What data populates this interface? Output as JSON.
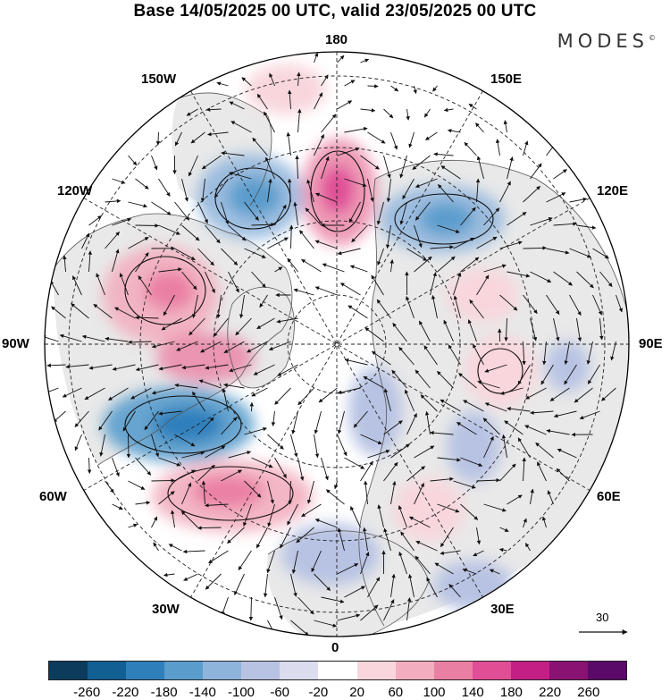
{
  "title": "Base 14/05/2025 00 UTC, valid 23/05/2025 00 UTC",
  "brand": "MODES",
  "brand_mark": "©",
  "longitude_labels": {
    "top": "180",
    "top_left": "150W",
    "top_right": "150E",
    "upper_left": "120W",
    "upper_right": "120E",
    "left": "90W",
    "right": "90E",
    "lower_left": "60W",
    "lower_right": "60E",
    "bottom_left": "30W",
    "bottom_right": "30E",
    "bottom": "0"
  },
  "reference_vector": {
    "label": "30"
  },
  "colorbar": {
    "tick_labels": [
      "-260",
      "-220",
      "-180",
      "-140",
      "-100",
      "-60",
      "-20",
      "20",
      "60",
      "100",
      "140",
      "180",
      "220",
      "260"
    ],
    "colors": [
      "#0d3b5c",
      "#125f93",
      "#2f7fbb",
      "#5a9ccc",
      "#8eb4dc",
      "#b8c3e3",
      "#dcdcef",
      "#ffffff",
      "#f8d6dc",
      "#f2aebe",
      "#ea7fa4",
      "#e04e96",
      "#c41f85",
      "#8a1272",
      "#5a0a68"
    ]
  },
  "map_colors": {
    "land": "#e9e9e9",
    "coast": "#555555",
    "grid": "#222222"
  }
}
